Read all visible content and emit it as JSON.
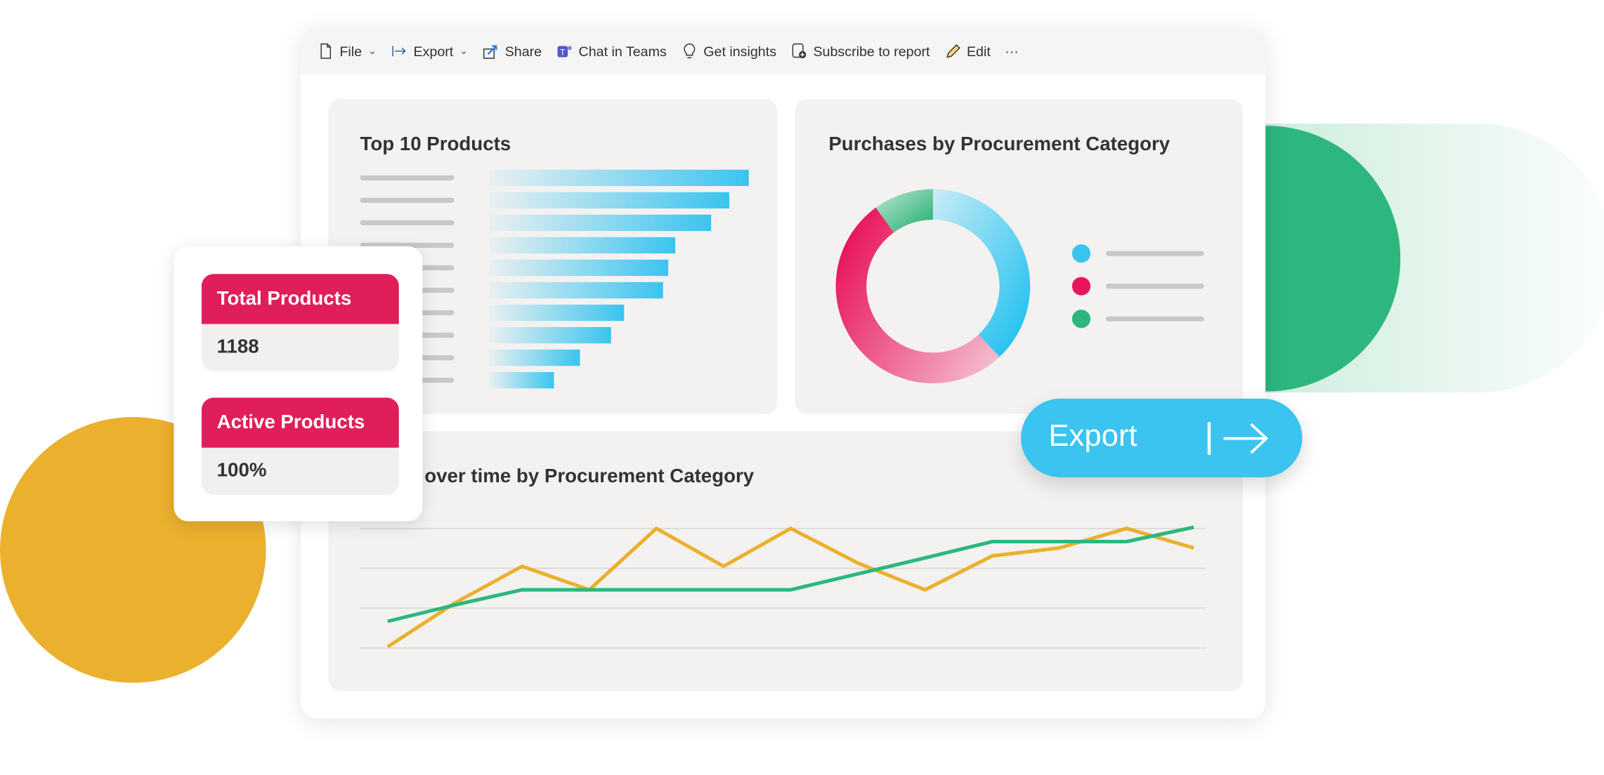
{
  "toolbar": {
    "items": [
      {
        "label": "File",
        "icon": "file-icon",
        "dropdown": true
      },
      {
        "label": "Export",
        "icon": "export-icon",
        "dropdown": true
      },
      {
        "label": "Share",
        "icon": "share-icon"
      },
      {
        "label": "Chat in Teams",
        "icon": "teams-icon"
      },
      {
        "label": "Get insights",
        "icon": "lightbulb-icon"
      },
      {
        "label": "Subscribe to report",
        "icon": "subscribe-icon"
      },
      {
        "label": "Edit",
        "icon": "pencil-icon"
      }
    ],
    "more": "···"
  },
  "cards": {
    "top_products": {
      "title": "Top 10 Products"
    },
    "purchases_category": {
      "title": "Purchases by Procurement Category"
    },
    "over_time": {
      "title": "over time by Procurement Category"
    }
  },
  "kpis": [
    {
      "label": "Total Products",
      "value": "1188"
    },
    {
      "label": "Active Products",
      "value": "100%"
    }
  ],
  "export_button": {
    "label": "Export"
  },
  "colors": {
    "accent_red": "#e01e5a",
    "blue": "#3ac4ef",
    "green": "#2db77f",
    "yellow": "#ebb02d"
  },
  "chart_data": [
    {
      "type": "bar",
      "orientation": "horizontal",
      "values": [
        100,
        92.5,
        85.5,
        71.7,
        69,
        67,
        52,
        47,
        35,
        25
      ],
      "title": "Top 10 Products"
    },
    {
      "type": "pie",
      "donut": true,
      "title": "Purchases by Procurement Category",
      "values": [
        38,
        52,
        10
      ],
      "colors": [
        "#3ac4ef",
        "#e8175d",
        "#2db77f"
      ]
    },
    {
      "type": "line",
      "title": "over time by Procurement Category",
      "grid": true,
      "ylim": [
        0,
        3
      ],
      "series": [
        {
          "color": "#ebb02d",
          "x": [
            0,
            1,
            2,
            3,
            4,
            5,
            6,
            7,
            8,
            9,
            10,
            11,
            12
          ],
          "y": [
            0.03,
            1.13,
            2.05,
            1.46,
            3,
            2.05,
            3,
            2.13,
            1.46,
            2.31,
            2.51,
            3,
            2.51
          ]
        },
        {
          "color": "#2db77f",
          "x": [
            0,
            1,
            2,
            6,
            8,
            9,
            11,
            12
          ],
          "y": [
            0.67,
            1.08,
            1.46,
            1.46,
            2.26,
            2.67,
            2.67,
            3.03
          ]
        }
      ]
    }
  ]
}
